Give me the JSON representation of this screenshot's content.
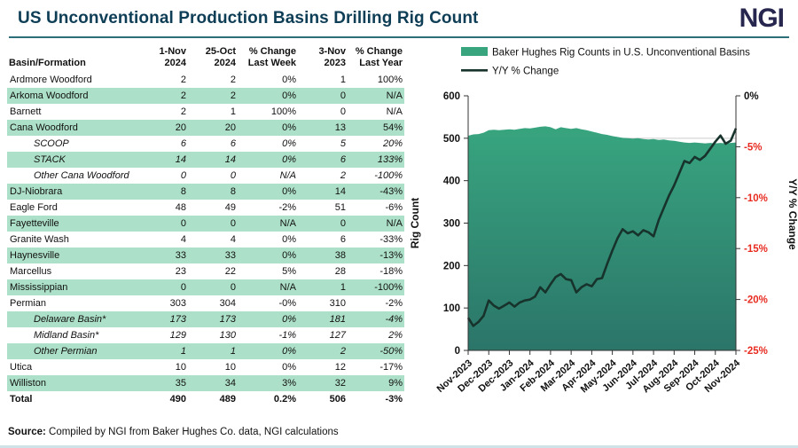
{
  "header": {
    "title": "US Unconventional Production Basins Drilling Rig Count",
    "logo": "NGI"
  },
  "table": {
    "col_headers": [
      {
        "line1": "",
        "line2": "Basin/Formation"
      },
      {
        "line1": "1-Nov",
        "line2": "2024"
      },
      {
        "line1": "25-Oct",
        "line2": "2024"
      },
      {
        "line1": "% Change",
        "line2": "Last Week"
      },
      {
        "line1": "3-Nov",
        "line2": "2023"
      },
      {
        "line1": "% Change",
        "line2": "Last Year"
      }
    ],
    "rows": [
      {
        "name": "Ardmore Woodford",
        "style": "normal",
        "values": [
          "2",
          "2",
          "0%",
          "1",
          "100%"
        ]
      },
      {
        "name": "Arkoma Woodford",
        "style": "normal",
        "values": [
          "2",
          "2",
          "0%",
          "0",
          "N/A"
        ]
      },
      {
        "name": "Barnett",
        "style": "normal",
        "values": [
          "2",
          "1",
          "100%",
          "0",
          "N/A"
        ]
      },
      {
        "name": "Cana Woodford",
        "style": "normal",
        "values": [
          "20",
          "20",
          "0%",
          "13",
          "54%"
        ]
      },
      {
        "name": "SCOOP",
        "style": "sub",
        "values": [
          "6",
          "6",
          "0%",
          "5",
          "20%"
        ]
      },
      {
        "name": "STACK",
        "style": "sub",
        "values": [
          "14",
          "14",
          "0%",
          "6",
          "133%"
        ]
      },
      {
        "name": "Other Cana Woodford",
        "style": "sub",
        "values": [
          "0",
          "0",
          "N/A",
          "2",
          "-100%"
        ]
      },
      {
        "name": "DJ-Niobrara",
        "style": "normal",
        "values": [
          "8",
          "8",
          "0%",
          "14",
          "-43%"
        ]
      },
      {
        "name": "Eagle Ford",
        "style": "normal",
        "values": [
          "48",
          "49",
          "-2%",
          "51",
          "-6%"
        ]
      },
      {
        "name": "Fayetteville",
        "style": "normal",
        "values": [
          "0",
          "0",
          "N/A",
          "0",
          "N/A"
        ]
      },
      {
        "name": "Granite Wash",
        "style": "normal",
        "values": [
          "4",
          "4",
          "0%",
          "6",
          "-33%"
        ]
      },
      {
        "name": "Haynesville",
        "style": "normal",
        "values": [
          "33",
          "33",
          "0%",
          "38",
          "-13%"
        ]
      },
      {
        "name": "Marcellus",
        "style": "normal",
        "values": [
          "23",
          "22",
          "5%",
          "28",
          "-18%"
        ]
      },
      {
        "name": "Mississippian",
        "style": "normal",
        "values": [
          "0",
          "0",
          "N/A",
          "1",
          "-100%"
        ]
      },
      {
        "name": "Permian",
        "style": "normal",
        "values": [
          "303",
          "304",
          "-0%",
          "310",
          "-2%"
        ]
      },
      {
        "name": "Delaware Basin*",
        "style": "sub",
        "values": [
          "173",
          "173",
          "0%",
          "181",
          "-4%"
        ]
      },
      {
        "name": "Midland Basin*",
        "style": "sub",
        "values": [
          "129",
          "130",
          "-1%",
          "127",
          "2%"
        ]
      },
      {
        "name": "Other Permian",
        "style": "sub",
        "values": [
          "1",
          "1",
          "0%",
          "2",
          "-50%"
        ]
      },
      {
        "name": "Utica",
        "style": "normal",
        "values": [
          "10",
          "10",
          "0%",
          "12",
          "-17%"
        ]
      },
      {
        "name": "Williston",
        "style": "normal",
        "values": [
          "35",
          "34",
          "3%",
          "32",
          "9%"
        ]
      },
      {
        "name": "Total",
        "style": "total",
        "values": [
          "490",
          "489",
          "0.2%",
          "506",
          "-3%"
        ]
      }
    ]
  },
  "source": {
    "label": "Source:",
    "text": " Compiled by NGI from Baker Hughes Co. data, NGI calculations"
  },
  "chart_data": {
    "type": "area",
    "title": "",
    "x_tick_labels": [
      "Nov-2023",
      "Dec-2023",
      "Dec-2023",
      "Jan-2024",
      "Feb-2024",
      "Mar-2024",
      "Apr-2024",
      "May-2024",
      "Jun-2024",
      "Jul-2024",
      "Aug-2024",
      "Sep-2024",
      "Oct-2024",
      "Nov-2024"
    ],
    "x_tick_positions": [
      0,
      4,
      8,
      12,
      16,
      20,
      24,
      28,
      32,
      36,
      40,
      44,
      48,
      52
    ],
    "n_points": 53,
    "series": [
      {
        "name": "Baker Hughes Rig Counts in U.S. Unconventional Basins",
        "type": "area",
        "axis": "left",
        "values": [
          506,
          509,
          510,
          513,
          519,
          520,
          519,
          520,
          521,
          520,
          522,
          524,
          523,
          525,
          527,
          528,
          526,
          521,
          526,
          524,
          522,
          524,
          521,
          519,
          516,
          513,
          510,
          508,
          505,
          503,
          501,
          500,
          499,
          500,
          498,
          497,
          498,
          496,
          497,
          495,
          494,
          492,
          490,
          489,
          490,
          489,
          488,
          489,
          488,
          489,
          488,
          489,
          490
        ]
      },
      {
        "name": "Y/Y % Change",
        "type": "line",
        "axis": "right",
        "values": [
          -21.8,
          -22.6,
          -22.2,
          -21.6,
          -20.1,
          -20.6,
          -20.9,
          -20.6,
          -20.3,
          -20.7,
          -20.3,
          -20.1,
          -20.0,
          -19.7,
          -18.8,
          -19.3,
          -18.5,
          -17.8,
          -17.5,
          -18.0,
          -18.1,
          -19.3,
          -18.8,
          -18.5,
          -18.7,
          -18.0,
          -17.9,
          -16.5,
          -15.2,
          -14.0,
          -13.1,
          -13.5,
          -13.3,
          -13.7,
          -13.2,
          -13.4,
          -13.8,
          -12.2,
          -11.0,
          -9.8,
          -8.8,
          -7.6,
          -6.4,
          -6.6,
          -6.0,
          -6.3,
          -5.9,
          -5.2,
          -4.5,
          -3.9,
          -4.7,
          -4.4,
          -3.2
        ]
      }
    ],
    "left_axis": {
      "label": "Rig Count",
      "min": 0,
      "max": 600,
      "ticks": [
        600,
        500,
        400,
        300,
        200,
        100,
        0
      ]
    },
    "right_axis": {
      "label": "Y/Y % Change",
      "min": -25,
      "max": 0,
      "tick_labels": [
        "0%",
        "-5%",
        "-10%",
        "-15%",
        "-20%",
        "-25%"
      ]
    },
    "legend_position": "top-left",
    "grid": "horizontal"
  },
  "colors": {
    "title": "#0e3d56",
    "logo": "#26264f",
    "rule": "#2e6e7a",
    "stripe": "#ade0c8",
    "negative": "#e82b20",
    "area_top": "#38a57f",
    "area_bottom": "#2b7569",
    "line": "#17332c",
    "grid": "#c9cccb",
    "axis": "#333333"
  }
}
